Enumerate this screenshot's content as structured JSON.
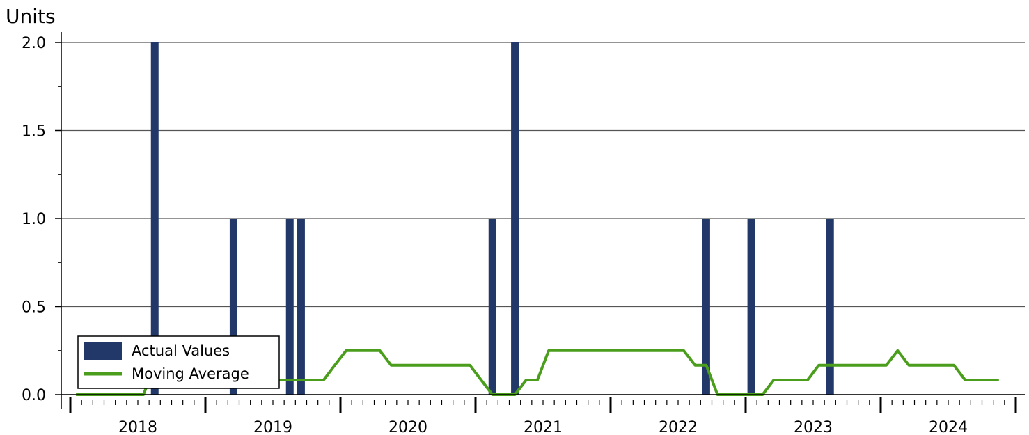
{
  "chart_data": {
    "type": "bar",
    "title": "",
    "xlabel": "",
    "ylabel": "Units",
    "ylim": [
      0,
      2
    ],
    "y_ticks": [
      "0.0",
      "0.5",
      "1.0",
      "1.5",
      "2.0"
    ],
    "x_ticks": [
      "2018",
      "2019",
      "2020",
      "2021",
      "2022",
      "2023",
      "2024"
    ],
    "x_range": [
      "2017-12",
      "2024-12"
    ],
    "grid": "horizontal",
    "legend_position": "bottom-left",
    "colors": {
      "bars": "#223868",
      "line": "#4a9e1c"
    },
    "series": [
      {
        "name": "Actual Values",
        "type": "bar",
        "points": [
          {
            "month": "2018-08",
            "value": 2
          },
          {
            "month": "2019-03",
            "value": 1
          },
          {
            "month": "2019-08",
            "value": 1
          },
          {
            "month": "2019-09",
            "value": 1
          },
          {
            "month": "2021-02",
            "value": 1
          },
          {
            "month": "2021-04",
            "value": 2
          },
          {
            "month": "2022-09",
            "value": 1
          },
          {
            "month": "2023-01",
            "value": 1
          },
          {
            "month": "2023-08",
            "value": 1
          }
        ]
      },
      {
        "name": "Moving Average",
        "type": "line",
        "start": "2018-01",
        "values": [
          0,
          0,
          0,
          0,
          0,
          0,
          0,
          0.167,
          0.167,
          0.167,
          0.167,
          0.167,
          0.25,
          0.25,
          0.25,
          0.25,
          0.25,
          0.25,
          0.083,
          0.083,
          0.083,
          0.083,
          0.083,
          0.167,
          0.25,
          0.25,
          0.25,
          0.25,
          0.167,
          0.167,
          0.167,
          0.167,
          0.167,
          0.167,
          0.167,
          0.167,
          0.083,
          0,
          0,
          0,
          0.083,
          0.083,
          0.25,
          0.25,
          0.25,
          0.25,
          0.25,
          0.25,
          0.25,
          0.25,
          0.25,
          0.25,
          0.25,
          0.25,
          0.25,
          0.167,
          0.167,
          0,
          0,
          0,
          0,
          0,
          0.083,
          0.083,
          0.083,
          0.083,
          0.167,
          0.167,
          0.167,
          0.167,
          0.167,
          0.167,
          0.167,
          0.25,
          0.167,
          0.167,
          0.167,
          0.167,
          0.167,
          0.083,
          0.083,
          0.083,
          0.083
        ]
      }
    ]
  }
}
